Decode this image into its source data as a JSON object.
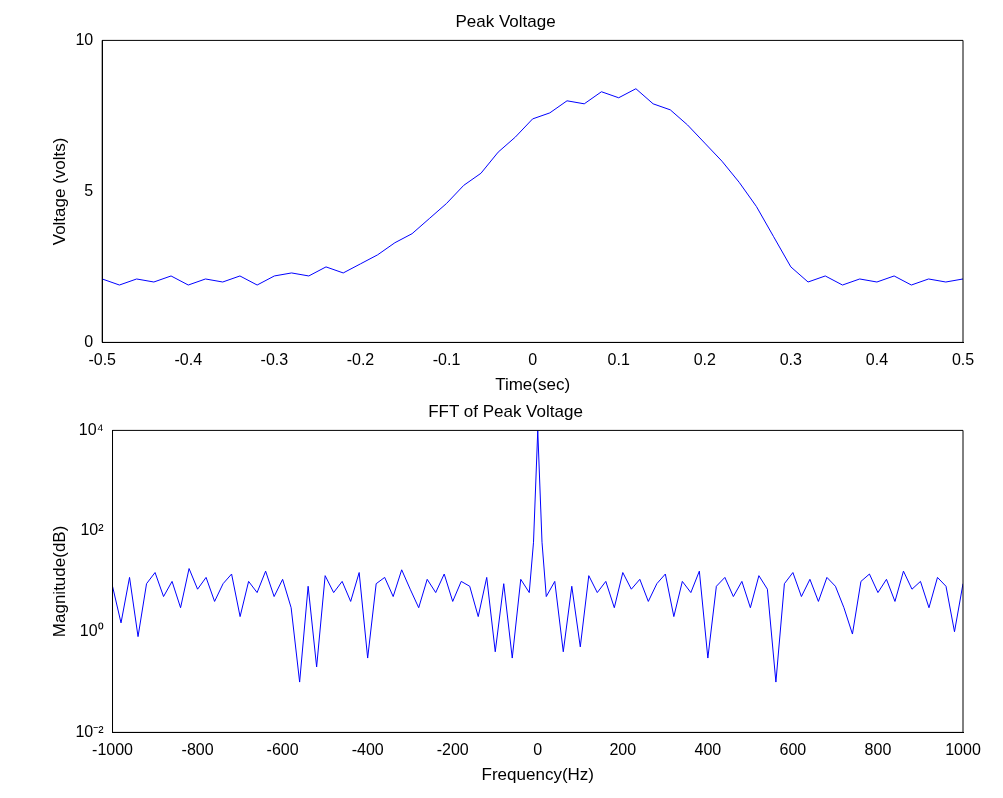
{
  "chart_data": [
    {
      "type": "line",
      "title": "Peak Voltage",
      "xlabel": "Time(sec)",
      "ylabel": "Voltage (volts)",
      "xlim": [
        -0.5,
        0.5
      ],
      "xticks": [
        -0.5,
        -0.4,
        -0.3,
        -0.2,
        -0.1,
        0,
        0.1,
        0.2,
        0.3,
        0.4,
        0.5
      ],
      "ylim": [
        0,
        10
      ],
      "yticks": [
        0,
        5,
        10
      ],
      "series": [
        {
          "color": "#0000ff",
          "x": [
            -0.5,
            -0.48,
            -0.46,
            -0.44,
            -0.42,
            -0.4,
            -0.38,
            -0.36,
            -0.34,
            -0.32,
            -0.3,
            -0.28,
            -0.26,
            -0.24,
            -0.22,
            -0.2,
            -0.18,
            -0.16,
            -0.14,
            -0.12,
            -0.1,
            -0.08,
            -0.06,
            -0.04,
            -0.02,
            0,
            0.02,
            0.04,
            0.06,
            0.08,
            0.1,
            0.12,
            0.14,
            0.16,
            0.18,
            0.2,
            0.22,
            0.24,
            0.26,
            0.28,
            0.3,
            0.32,
            0.34,
            0.36,
            0.38,
            0.4,
            0.42,
            0.44,
            0.46,
            0.48,
            0.5
          ],
          "values": [
            2.1,
            1.9,
            2.1,
            2.0,
            2.2,
            1.9,
            2.1,
            2.0,
            2.2,
            1.9,
            2.2,
            2.3,
            2.2,
            2.5,
            2.3,
            2.6,
            2.9,
            3.3,
            3.6,
            4.1,
            4.6,
            5.2,
            5.6,
            6.3,
            6.8,
            7.4,
            7.6,
            8.0,
            7.9,
            8.3,
            8.1,
            8.4,
            7.9,
            7.7,
            7.2,
            6.6,
            6.0,
            5.3,
            4.5,
            3.5,
            2.5,
            2.0,
            2.2,
            1.9,
            2.1,
            2.0,
            2.2,
            1.9,
            2.1,
            2.0,
            2.1
          ]
        }
      ]
    },
    {
      "type": "line",
      "title": "FFT of Peak Voltage",
      "xlabel": "Frequency(Hz)",
      "ylabel": "Magnitude(dB)",
      "log": "y",
      "xlim": [
        -1000,
        1000
      ],
      "xticks": [
        -1000,
        -800,
        -600,
        -400,
        -200,
        0,
        200,
        400,
        600,
        800,
        1000
      ],
      "ylim": [
        0.01,
        10000
      ],
      "yticks": [
        {
          "value": 0.01,
          "label": "10⁻²"
        },
        {
          "value": 1,
          "label": "10⁰"
        },
        {
          "value": 100,
          "label": "10²"
        },
        {
          "value": 10000,
          "label": "10⁴"
        }
      ],
      "series": [
        {
          "color": "#0000ff",
          "x": [
            -1000,
            -980,
            -960,
            -940,
            -920,
            -900,
            -880,
            -860,
            -840,
            -820,
            -800,
            -780,
            -760,
            -740,
            -720,
            -700,
            -680,
            -660,
            -640,
            -620,
            -600,
            -580,
            -560,
            -540,
            -520,
            -500,
            -480,
            -460,
            -440,
            -420,
            -400,
            -380,
            -360,
            -340,
            -320,
            -300,
            -280,
            -260,
            -240,
            -220,
            -200,
            -180,
            -160,
            -140,
            -120,
            -100,
            -80,
            -60,
            -40,
            -20,
            -10,
            0,
            10,
            20,
            40,
            60,
            80,
            100,
            120,
            140,
            160,
            180,
            200,
            220,
            240,
            260,
            280,
            300,
            320,
            340,
            360,
            380,
            400,
            420,
            440,
            460,
            480,
            500,
            520,
            540,
            560,
            580,
            600,
            620,
            640,
            660,
            680,
            700,
            720,
            740,
            760,
            780,
            800,
            820,
            840,
            860,
            880,
            900,
            920,
            940,
            960,
            980,
            1000
          ],
          "values": [
            8,
            1.5,
            12,
            0.8,
            9,
            15,
            5,
            10,
            3,
            18,
            7,
            12,
            4,
            9,
            14,
            2,
            10,
            6,
            16,
            5,
            11,
            3,
            0.1,
            8,
            0.2,
            13,
            6,
            10,
            4,
            15,
            0.3,
            9,
            12,
            5,
            17,
            7,
            3,
            11,
            6,
            14,
            4,
            10,
            8,
            2,
            12,
            0.4,
            9,
            0.3,
            11,
            6,
            60,
            10000,
            60,
            5,
            10,
            0.4,
            8,
            0.5,
            13,
            6,
            10,
            3,
            15,
            7,
            11,
            4,
            9,
            14,
            2,
            10,
            6,
            16,
            0.3,
            8,
            12,
            5,
            10,
            3,
            13,
            7,
            0.1,
            9,
            15,
            5,
            11,
            4,
            12,
            8,
            3,
            0.9,
            10,
            14,
            6,
            11,
            4,
            16,
            7,
            10,
            3,
            12,
            8,
            1,
            9
          ]
        }
      ]
    }
  ]
}
